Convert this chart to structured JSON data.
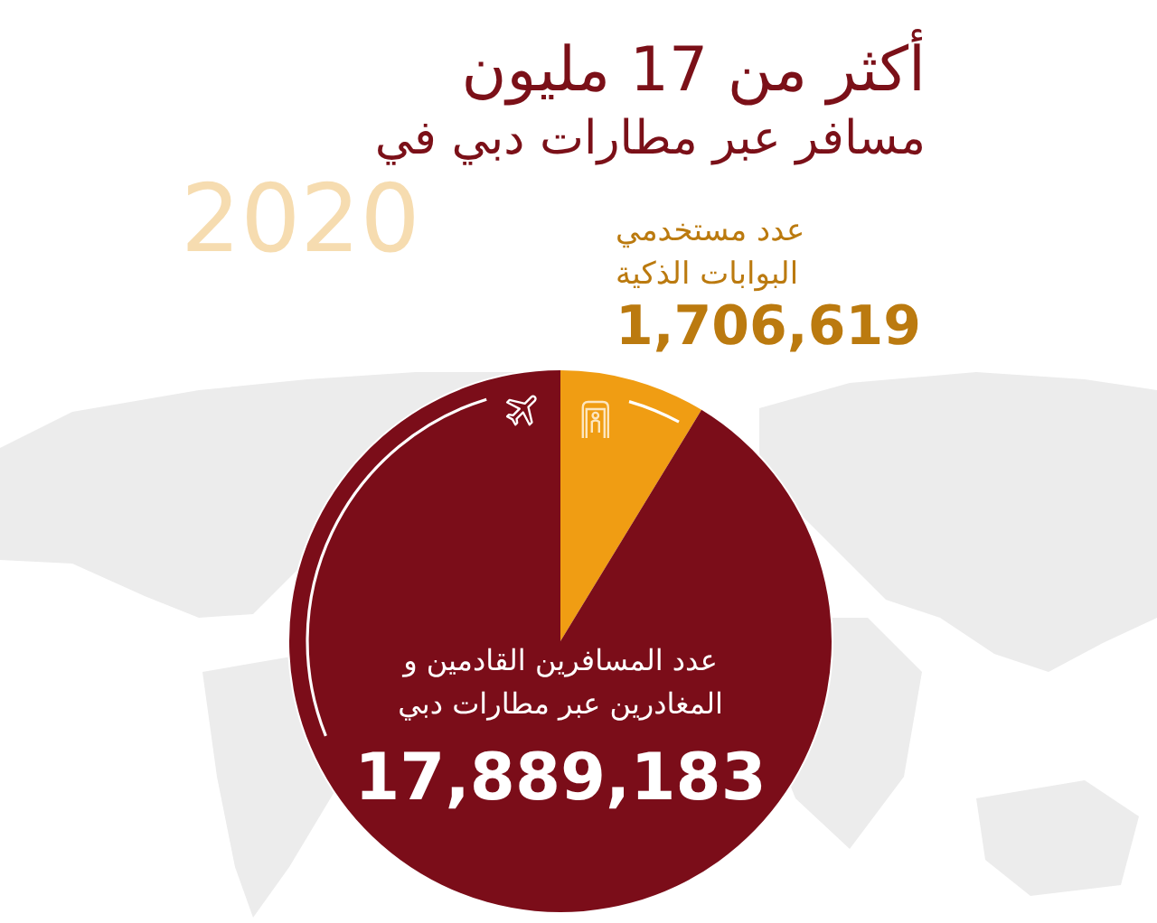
{
  "chart_data": {
    "type": "pie",
    "title": "أكثر من 17 مليون",
    "subtitle": "مسافر عبر مطارات دبي في",
    "annotations": [
      "2020"
    ],
    "categories": [
      "عدد مستخدمي البوابات الذكية",
      "عدد المسافرين القادمين و المغادرين عبر مطارات دبي"
    ],
    "values": [
      1706619,
      17889183
    ],
    "value_labels": [
      "1,706,619",
      "17,889,183"
    ],
    "colors": [
      "#f09d13",
      "#7b0d19"
    ],
    "legend": false
  }
}
